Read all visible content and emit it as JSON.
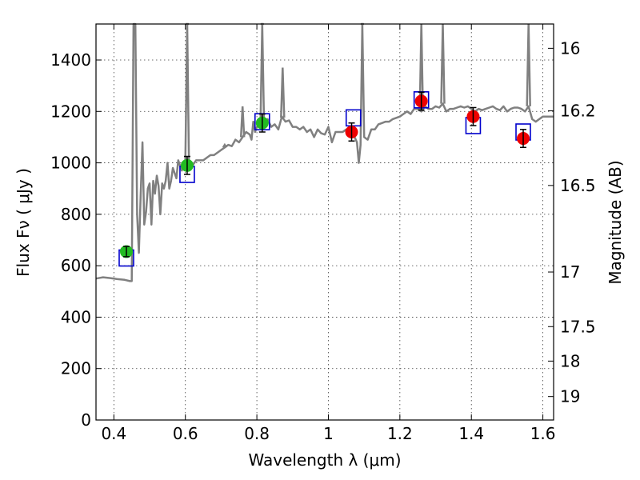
{
  "chart_data": {
    "type": "scatter",
    "xlabel": "Wavelength  λ (μm)",
    "ylabel": "Flux  Fν  ( μJy )",
    "y2label": "Magnitude (AB)",
    "xlim": [
      0.35,
      1.63
    ],
    "ylim": [
      0,
      1540
    ],
    "grid": true,
    "x_ticks": [
      {
        "value": 0.4,
        "label": "0.4"
      },
      {
        "value": 0.6,
        "label": "0.6"
      },
      {
        "value": 0.8,
        "label": "0.8"
      },
      {
        "value": 1.0,
        "label": "1"
      },
      {
        "value": 1.2,
        "label": "1.2"
      },
      {
        "value": 1.4,
        "label": "1.4"
      },
      {
        "value": 1.6,
        "label": "1.6"
      }
    ],
    "y_ticks": [
      {
        "value": 0,
        "label": "0"
      },
      {
        "value": 200,
        "label": "200"
      },
      {
        "value": 400,
        "label": "400"
      },
      {
        "value": 600,
        "label": "600"
      },
      {
        "value": 800,
        "label": "800"
      },
      {
        "value": 1000,
        "label": "1000"
      },
      {
        "value": 1200,
        "label": "1200"
      },
      {
        "value": 1400,
        "label": "1400"
      }
    ],
    "mag_ticks": [
      {
        "value": 16,
        "label": "16"
      },
      {
        "value": 16.2,
        "label": "16.2"
      },
      {
        "value": 16.5,
        "label": "16.5"
      },
      {
        "value": 17,
        "label": "17"
      },
      {
        "value": 17.5,
        "label": "17.5"
      },
      {
        "value": 18,
        "label": "18"
      },
      {
        "value": 19,
        "label": "19"
      }
    ],
    "spectrum": {
      "name": "model spectrum",
      "color": "#808080",
      "x": [
        0.35,
        0.37,
        0.39,
        0.41,
        0.43,
        0.445,
        0.45,
        0.455,
        0.46,
        0.465,
        0.47,
        0.475,
        0.48,
        0.485,
        0.49,
        0.495,
        0.5,
        0.505,
        0.51,
        0.515,
        0.52,
        0.525,
        0.53,
        0.535,
        0.54,
        0.545,
        0.55,
        0.555,
        0.56,
        0.565,
        0.57,
        0.575,
        0.58,
        0.585,
        0.59,
        0.595,
        0.6,
        0.605,
        0.61,
        0.62,
        0.63,
        0.64,
        0.65,
        0.66,
        0.67,
        0.68,
        0.69,
        0.7,
        0.71,
        0.72,
        0.73,
        0.74,
        0.75,
        0.76,
        0.77,
        0.78,
        0.785,
        0.79,
        0.795,
        0.8,
        0.81,
        0.815,
        0.82,
        0.83,
        0.84,
        0.85,
        0.86,
        0.87,
        0.88,
        0.89,
        0.9,
        0.91,
        0.92,
        0.93,
        0.94,
        0.95,
        0.96,
        0.97,
        0.98,
        0.99,
        1.0,
        1.01,
        1.02,
        1.03,
        1.04,
        1.05,
        1.06,
        1.07,
        1.08,
        1.085,
        1.09,
        1.095,
        1.1,
        1.11,
        1.12,
        1.13,
        1.14,
        1.15,
        1.16,
        1.17,
        1.18,
        1.19,
        1.2,
        1.21,
        1.22,
        1.23,
        1.24,
        1.25,
        1.26,
        1.27,
        1.28,
        1.29,
        1.3,
        1.31,
        1.32,
        1.33,
        1.34,
        1.35,
        1.36,
        1.37,
        1.38,
        1.39,
        1.4,
        1.41,
        1.42,
        1.43,
        1.44,
        1.45,
        1.46,
        1.47,
        1.48,
        1.49,
        1.5,
        1.51,
        1.52,
        1.53,
        1.54,
        1.55,
        1.56,
        1.57,
        1.58,
        1.59,
        1.6,
        1.61,
        1.62,
        1.63
      ],
      "y": [
        550,
        555,
        552,
        548,
        545,
        540,
        540,
        1540,
        1540,
        800,
        650,
        880,
        1080,
        760,
        810,
        900,
        920,
        760,
        930,
        880,
        950,
        910,
        800,
        920,
        900,
        930,
        1000,
        900,
        930,
        980,
        960,
        940,
        1010,
        990,
        970,
        1000,
        1010,
        1540,
        1000,
        990,
        1010,
        1010,
        1010,
        1020,
        1030,
        1030,
        1040,
        1050,
        1060,
        1070,
        1065,
        1090,
        1080,
        1100,
        1120,
        1110,
        1090,
        1160,
        1120,
        1140,
        1150,
        1540,
        1160,
        1170,
        1140,
        1150,
        1130,
        1180,
        1160,
        1165,
        1140,
        1140,
        1130,
        1140,
        1120,
        1130,
        1100,
        1130,
        1115,
        1110,
        1140,
        1080,
        1120,
        1120,
        1120,
        1130,
        1110,
        1110,
        1080,
        1000,
        1070,
        1540,
        1100,
        1090,
        1130,
        1130,
        1150,
        1155,
        1160,
        1160,
        1170,
        1175,
        1180,
        1190,
        1200,
        1190,
        1210,
        1210,
        1200,
        1220,
        1210,
        1210,
        1220,
        1215,
        1230,
        1200,
        1210,
        1210,
        1215,
        1220,
        1215,
        1220,
        1210,
        1200,
        1210,
        1205,
        1210,
        1215,
        1220,
        1210,
        1205,
        1220,
        1200,
        1210,
        1215,
        1215,
        1210,
        1200,
        1220,
        1170,
        1160,
        1170,
        1180,
        1180,
        1180,
        1180
      ],
      "spikes": [
        {
          "x": 0.605,
          "peak": 1540
        },
        {
          "x": 0.815,
          "peak": 1540
        },
        {
          "x": 0.872,
          "peak": 1370
        },
        {
          "x": 1.095,
          "peak": 1540
        },
        {
          "x": 1.26,
          "peak": 1540
        },
        {
          "x": 1.32,
          "peak": 1540
        },
        {
          "x": 1.56,
          "peak": 1540
        },
        {
          "x": 0.71,
          "peak": 1070
        },
        {
          "x": 0.76,
          "peak": 1220
        }
      ]
    },
    "model_points": {
      "name": "model photometry",
      "color": "#0000cc",
      "x": [
        0.435,
        0.605,
        0.815,
        1.07,
        1.26,
        1.405,
        1.545
      ],
      "y": [
        630,
        955,
        1160,
        1175,
        1245,
        1145,
        1120
      ]
    },
    "optical_points": {
      "name": "optical data",
      "color": "#22bb22",
      "x": [
        0.435,
        0.605,
        0.815
      ],
      "y": [
        655,
        990,
        1155
      ],
      "err": [
        20,
        35,
        35
      ]
    },
    "nir_points": {
      "name": "near-IR data",
      "color": "#ee0000",
      "x": [
        1.065,
        1.26,
        1.405,
        1.545
      ],
      "y": [
        1120,
        1240,
        1180,
        1095
      ],
      "err": [
        35,
        35,
        35,
        35
      ]
    }
  }
}
